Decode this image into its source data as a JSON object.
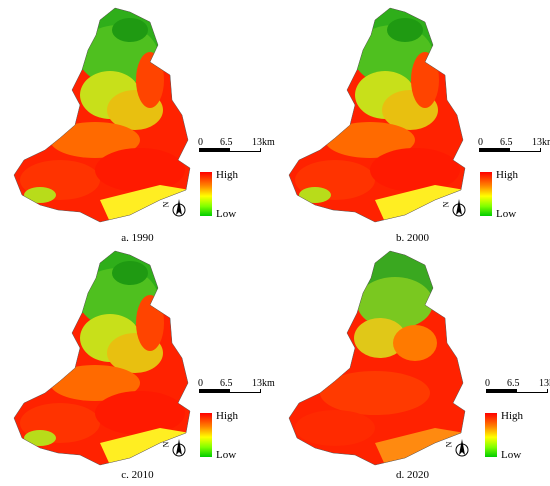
{
  "panels": [
    {
      "caption": "a. 1990"
    },
    {
      "caption": "b. 2000"
    },
    {
      "caption": "c. 2010"
    },
    {
      "caption": "d. 2020"
    }
  ],
  "scalebar": {
    "ticks": [
      "0",
      "6.5",
      "13km"
    ]
  },
  "legend": {
    "high": "High",
    "low": "Low"
  },
  "north": {
    "label": "N"
  },
  "colors": {
    "high": "#ff0000",
    "mid_high": "#ff8000",
    "mid": "#ffff00",
    "mid_low": "#7fff00",
    "low": "#00cc00",
    "water": "#ffff66"
  }
}
